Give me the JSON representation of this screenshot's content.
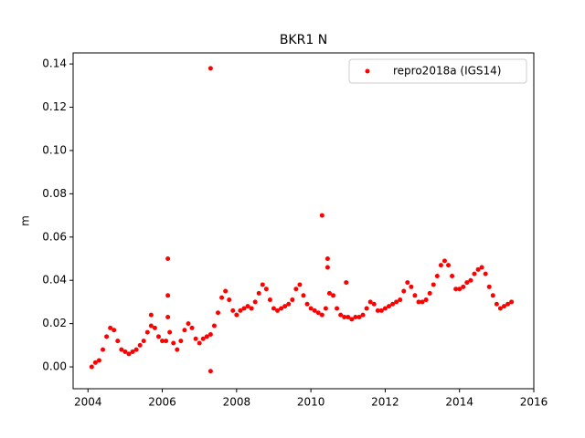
{
  "chart_data": {
    "type": "scatter",
    "title": "BKR1 N",
    "y_label": "m",
    "legend_position": "upper right",
    "xlim": [
      2003.6,
      2016.0
    ],
    "ylim": [
      -0.0101,
      0.1451
    ],
    "xticks": [
      2004,
      2006,
      2008,
      2010,
      2012,
      2014,
      2016
    ],
    "yticks": [
      {
        "value": 0,
        "label": "0.00"
      },
      0.02,
      0.04,
      0.06,
      0.08,
      {
        "value": 0.1,
        "label": "0.10"
      },
      0.12,
      0.14
    ],
    "series": [
      {
        "name": "repro2018a (IGS14)",
        "color": "#ff0000",
        "x": [
          2004.1,
          2004.2,
          2004.3,
          2004.4,
          2004.5,
          2004.6,
          2004.7,
          2004.8,
          2004.9,
          2005.0,
          2005.1,
          2005.2,
          2005.3,
          2005.4,
          2005.5,
          2005.6,
          2005.7,
          2005.8,
          2005.9,
          2006.0,
          2006.1,
          2006.2,
          2006.3,
          2006.4,
          2006.5,
          2006.6,
          2006.7,
          2006.8,
          2006.9,
          2007.0,
          2007.1,
          2007.2,
          2007.3,
          2007.4,
          2007.5,
          2007.6,
          2007.7,
          2007.8,
          2007.9,
          2008.0,
          2008.1,
          2008.2,
          2008.3,
          2008.4,
          2008.5,
          2008.6,
          2008.7,
          2008.8,
          2008.9,
          2009.0,
          2009.1,
          2009.2,
          2009.3,
          2009.4,
          2009.5,
          2009.6,
          2009.7,
          2009.8,
          2009.9,
          2010.0,
          2010.1,
          2010.2,
          2010.3,
          2010.4,
          2010.5,
          2010.6,
          2010.7,
          2010.8,
          2010.9,
          2011.0,
          2011.1,
          2011.2,
          2011.3,
          2011.4,
          2011.5,
          2011.6,
          2011.7,
          2011.8,
          2011.9,
          2012.0,
          2012.1,
          2012.2,
          2012.3,
          2012.4,
          2012.5,
          2012.6,
          2012.7,
          2012.8,
          2012.9,
          2013.0,
          2013.1,
          2013.2,
          2013.3,
          2013.4,
          2013.5,
          2013.6,
          2013.7,
          2013.8,
          2013.9,
          2014.0,
          2014.1,
          2014.2,
          2014.3,
          2014.4,
          2014.5,
          2014.6,
          2014.7,
          2014.8,
          2014.9,
          2015.0,
          2015.1,
          2015.2,
          2015.3,
          2015.4,
          2005.7,
          2006.15,
          2006.15,
          2006.15,
          2007.3,
          2007.3,
          2010.3,
          2010.45,
          2010.45,
          2010.95
        ],
        "values": [
          0.0,
          0.002,
          0.003,
          0.008,
          0.014,
          0.018,
          0.017,
          0.012,
          0.008,
          0.007,
          0.006,
          0.007,
          0.008,
          0.01,
          0.012,
          0.016,
          0.019,
          0.018,
          0.014,
          0.012,
          0.012,
          0.016,
          0.011,
          0.008,
          0.012,
          0.017,
          0.02,
          0.018,
          0.013,
          0.011,
          0.013,
          0.014,
          0.015,
          0.019,
          0.025,
          0.032,
          0.035,
          0.031,
          0.026,
          0.024,
          0.026,
          0.027,
          0.028,
          0.027,
          0.03,
          0.034,
          0.038,
          0.036,
          0.031,
          0.027,
          0.026,
          0.027,
          0.028,
          0.029,
          0.031,
          0.036,
          0.038,
          0.033,
          0.029,
          0.027,
          0.026,
          0.025,
          0.024,
          0.027,
          0.034,
          0.033,
          0.027,
          0.024,
          0.023,
          0.023,
          0.022,
          0.023,
          0.023,
          0.024,
          0.027,
          0.03,
          0.029,
          0.026,
          0.026,
          0.027,
          0.028,
          0.029,
          0.03,
          0.031,
          0.035,
          0.039,
          0.037,
          0.033,
          0.03,
          0.03,
          0.031,
          0.034,
          0.038,
          0.042,
          0.047,
          0.049,
          0.047,
          0.042,
          0.036,
          0.036,
          0.037,
          0.039,
          0.04,
          0.043,
          0.045,
          0.046,
          0.043,
          0.037,
          0.033,
          0.029,
          0.027,
          0.028,
          0.029,
          0.03,
          0.024,
          0.05,
          0.033,
          0.023,
          0.138,
          -0.002,
          0.07,
          0.05,
          0.046,
          0.039
        ]
      }
    ]
  }
}
